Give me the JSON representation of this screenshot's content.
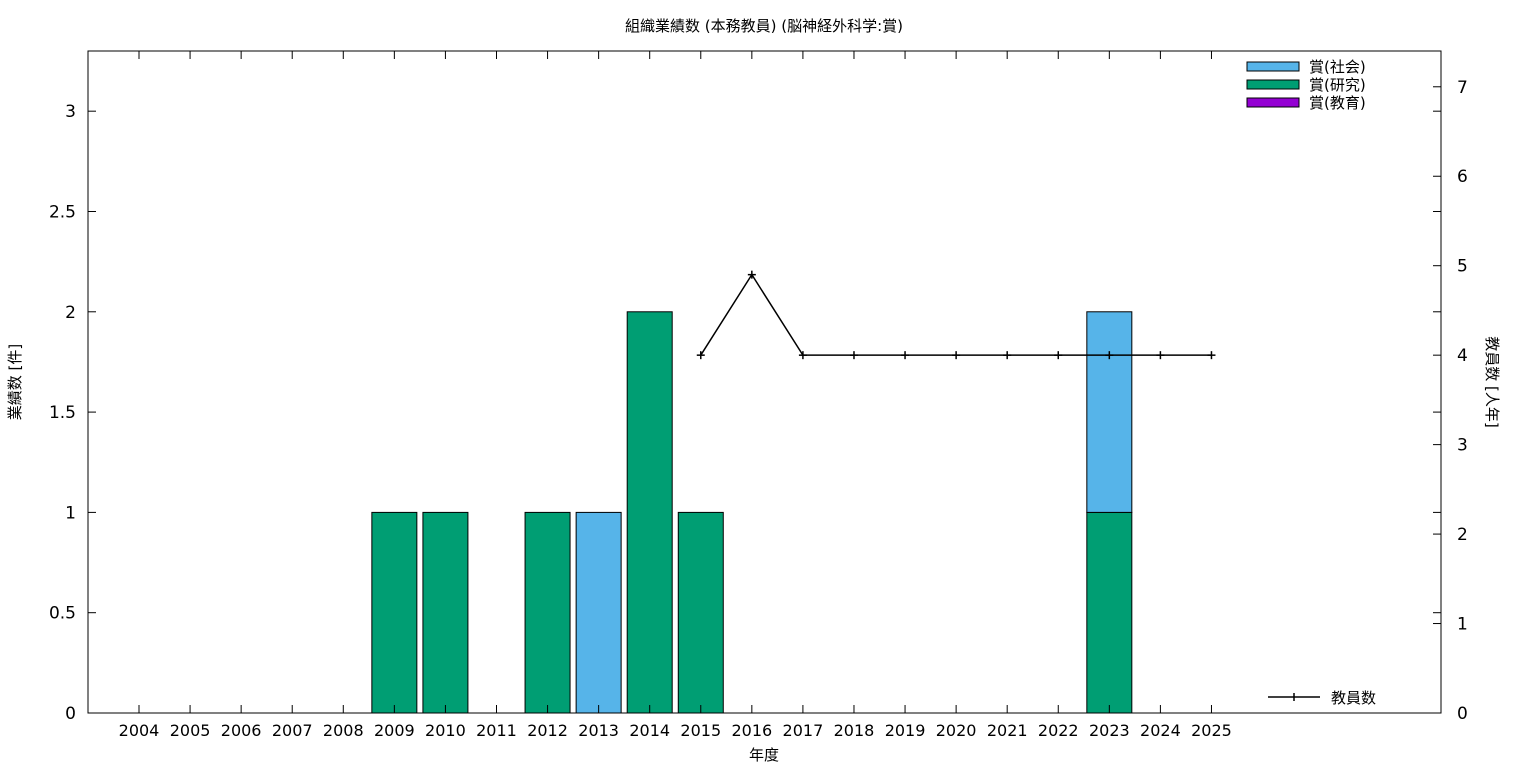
{
  "chart_data": {
    "type": "bar",
    "stacked": true,
    "title": "組織業績数 (本務教員) (脳神経外科学:賞)",
    "xlabel": "年度",
    "ylabel": "業績数 [件]",
    "y2label": "教員数 [人年]",
    "categories": [
      "2004",
      "2005",
      "2006",
      "2007",
      "2008",
      "2009",
      "2010",
      "2011",
      "2012",
      "2013",
      "2014",
      "2015",
      "2016",
      "2017",
      "2018",
      "2019",
      "2020",
      "2021",
      "2022",
      "2023",
      "2024",
      "2025"
    ],
    "ylim": [
      0,
      3.3
    ],
    "y_ticks": [
      "0",
      "0.5",
      "1",
      "1.5",
      "2",
      "2.5",
      "3"
    ],
    "y2lim": [
      0,
      7.4
    ],
    "y2_ticks": [
      "0",
      "1",
      "2",
      "3",
      "4",
      "5",
      "6",
      "7"
    ],
    "grid": false,
    "legend_position": "top-right",
    "line_legend_position": "bottom-right",
    "series": [
      {
        "name": "賞(研究)",
        "color": "#009e73",
        "values": [
          0,
          0,
          0,
          0,
          0,
          1,
          1,
          0,
          1,
          0,
          2,
          1,
          0,
          0,
          0,
          0,
          0,
          0,
          0,
          1,
          0,
          0
        ]
      },
      {
        "name": "賞(社会)",
        "color": "#56b4e9",
        "values": [
          0,
          0,
          0,
          0,
          0,
          0,
          0,
          0,
          0,
          1,
          0,
          0,
          0,
          0,
          0,
          0,
          0,
          0,
          0,
          1,
          0,
          0
        ]
      },
      {
        "name": "賞(教育)",
        "color": "#9400d3",
        "values": [
          0,
          0,
          0,
          0,
          0,
          0,
          0,
          0,
          0,
          0,
          0,
          0,
          0,
          0,
          0,
          0,
          0,
          0,
          0,
          0,
          0,
          0
        ]
      }
    ],
    "legend_order": [
      "賞(社会)",
      "賞(研究)",
      "賞(教育)"
    ],
    "line_series": {
      "name": "教員数",
      "color": "#000000",
      "axis": "y2",
      "x": [
        "2015",
        "2016",
        "2017",
        "2018",
        "2019",
        "2020",
        "2021",
        "2022",
        "2023",
        "2024",
        "2025"
      ],
      "values": [
        4,
        4.9,
        4,
        4,
        4,
        4,
        4,
        4,
        4,
        4,
        4
      ]
    }
  }
}
